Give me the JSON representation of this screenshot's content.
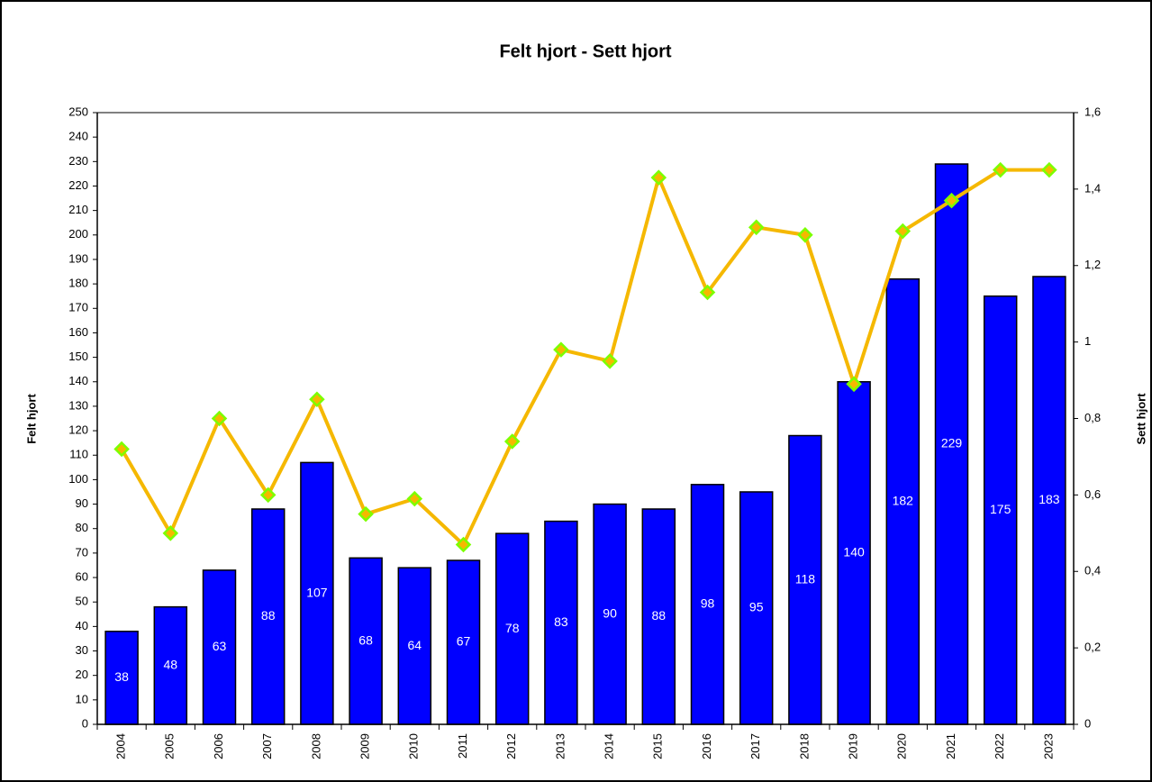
{
  "chart_data": {
    "type": "bar_line",
    "title": "Felt hjort - Sett hjort",
    "ylabel": "Felt hjort",
    "y2label": "Sett hjort",
    "categories": [
      "2004",
      "2005",
      "2006",
      "2007",
      "2008",
      "2009",
      "2010",
      "2011",
      "2012",
      "2013",
      "2014",
      "2015",
      "2016",
      "2017",
      "2018",
      "2019",
      "2020",
      "2021",
      "2022",
      "2023"
    ],
    "series": [
      {
        "name": "Felt hjort",
        "type": "bar",
        "color": "#0000ff",
        "values": [
          38,
          48,
          63,
          88,
          107,
          68,
          64,
          67,
          78,
          83,
          90,
          88,
          98,
          95,
          118,
          140,
          182,
          229,
          175,
          183
        ]
      },
      {
        "name": "Sett hjort",
        "type": "line",
        "axis": "y2",
        "color": "#f5b800",
        "marker_color": "#7cff00",
        "values": [
          0.72,
          0.5,
          0.8,
          0.6,
          0.85,
          0.55,
          0.59,
          0.47,
          0.74,
          0.98,
          0.95,
          1.43,
          1.13,
          1.3,
          1.28,
          0.89,
          1.29,
          1.37,
          1.45,
          1.45
        ]
      }
    ],
    "ylim": [
      0,
      250
    ],
    "yticks": [
      0,
      10,
      20,
      30,
      40,
      50,
      60,
      70,
      80,
      90,
      100,
      110,
      120,
      130,
      140,
      150,
      160,
      170,
      180,
      190,
      200,
      210,
      220,
      230,
      240,
      250
    ],
    "y2lim": [
      0,
      1.6
    ],
    "y2ticks": [
      0,
      {
        "value": 0.2,
        "label": "0,2"
      },
      {
        "value": 0.4,
        "label": "0,4"
      },
      {
        "value": 0.6,
        "label": "0,6"
      },
      {
        "value": 0.8,
        "label": "0,8"
      },
      1,
      {
        "value": 1.2,
        "label": "1,2"
      },
      {
        "value": 1.4,
        "label": "1,4"
      },
      {
        "value": 1.6,
        "label": "1,6"
      }
    ]
  }
}
